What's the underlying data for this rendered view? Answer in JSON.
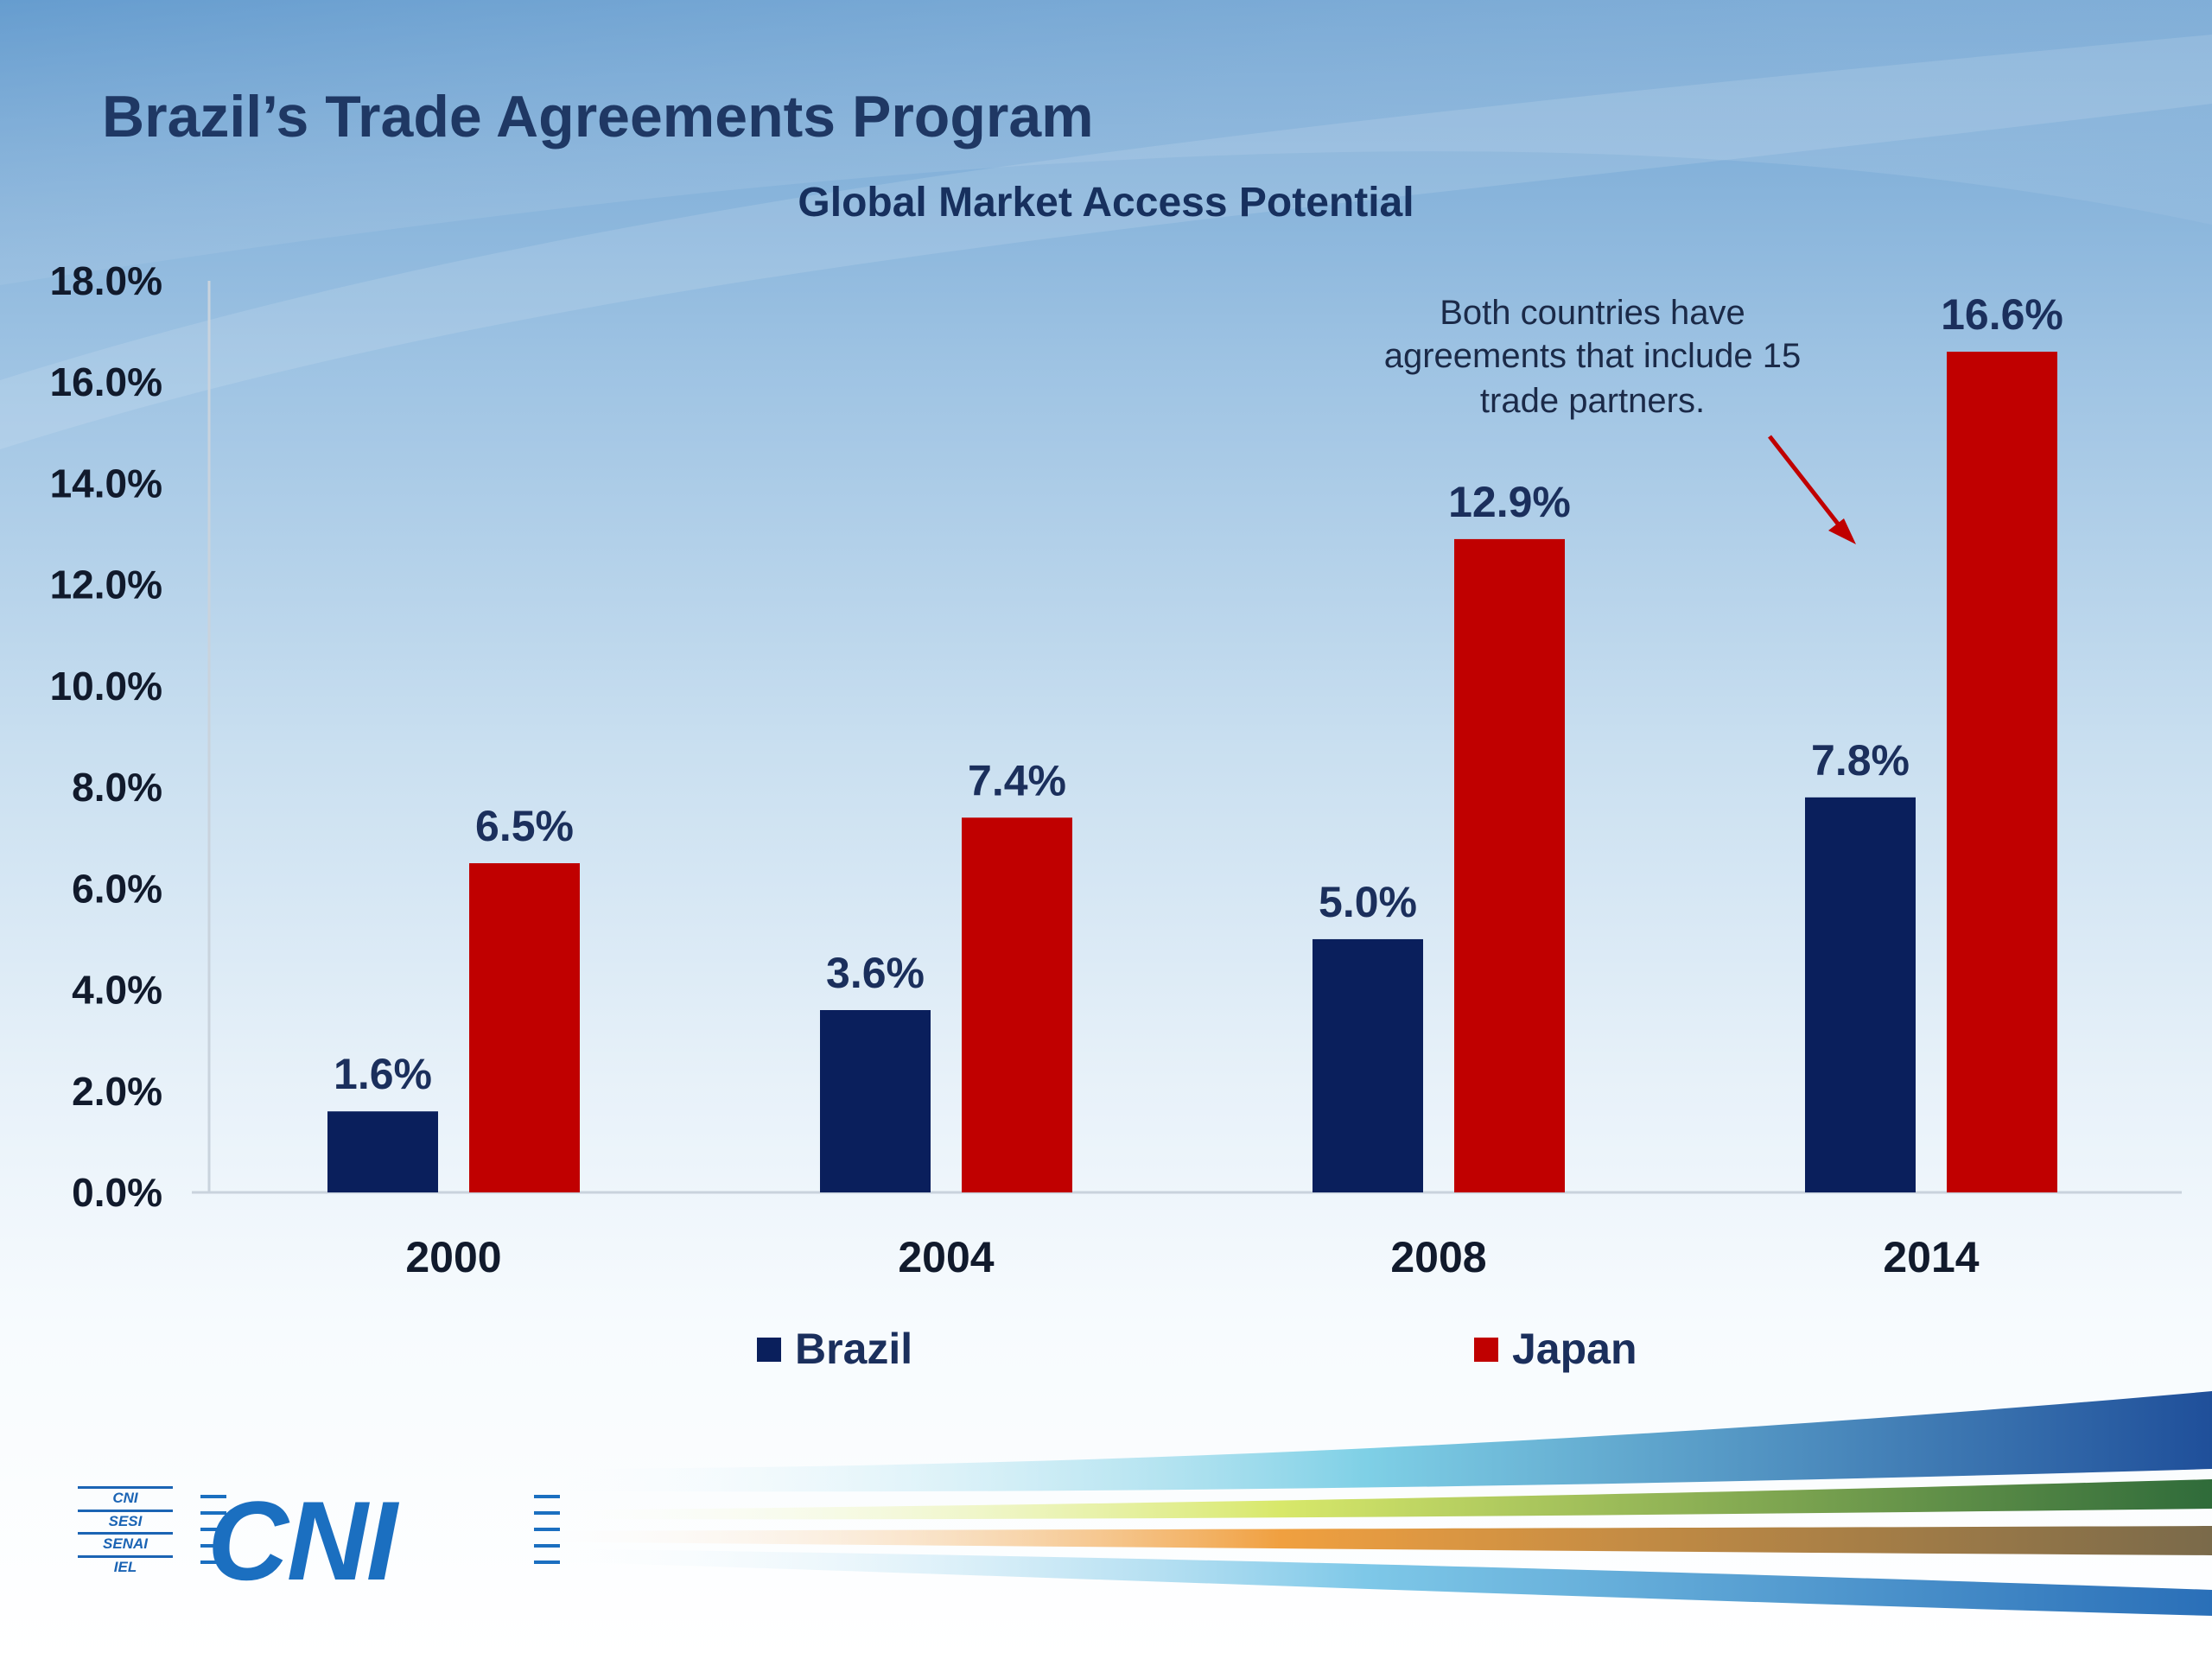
{
  "page": {
    "title": "Brazil’s Trade Agreements Program"
  },
  "chart_data": {
    "type": "bar",
    "title": "Global Market Access Potential",
    "categories": [
      "2000",
      "2004",
      "2008",
      "2014"
    ],
    "series": [
      {
        "name": "Brazil",
        "values": [
          1.6,
          3.6,
          5.0,
          7.8
        ],
        "labels": [
          "1.6%",
          "3.6%",
          "5.0%",
          "7.8%"
        ],
        "color": "#0a1f5c"
      },
      {
        "name": "Japan",
        "values": [
          6.5,
          7.4,
          12.9,
          16.6
        ],
        "labels": [
          "6.5%",
          "7.4%",
          "12.9%",
          "16.6%"
        ],
        "color": "#c00000"
      }
    ],
    "ylim": [
      0,
      18
    ],
    "yticks": [
      "0.0%",
      "2.0%",
      "4.0%",
      "6.0%",
      "8.0%",
      "10.0%",
      "12.0%",
      "14.0%",
      "16.0%",
      "18.0%"
    ],
    "xlabel": "",
    "ylabel": "",
    "grid": false,
    "legend_position": "bottom",
    "annotation": {
      "lines": [
        "Both countries have",
        "agreements that include 15",
        "trade partners."
      ],
      "arrow_color": "#c00000"
    }
  },
  "logo": {
    "sub_lines": [
      "CNI",
      "SESI",
      "SENAI",
      "IEL"
    ],
    "main_text": "CNI"
  }
}
